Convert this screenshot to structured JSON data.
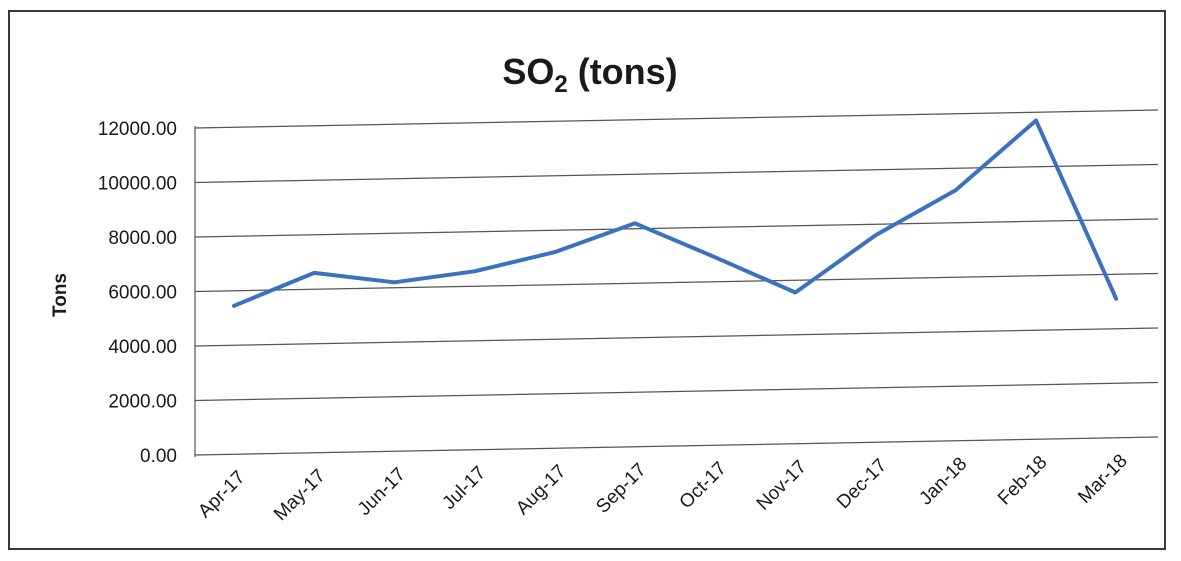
{
  "chart_data": {
    "type": "line",
    "title_main": "SO",
    "title_subscript": "2",
    "title_rest": " (tons)",
    "xlabel": "",
    "ylabel": "Tons",
    "categories": [
      "Apr-17",
      "May-17",
      "Jun-17",
      "Jul-17",
      "Aug-17",
      "Sep-17",
      "Oct-17",
      "Nov-17",
      "Dec-17",
      "Jan-18",
      "Feb-18",
      "Mar-18"
    ],
    "series": [
      {
        "values": [
          5450,
          6600,
          6200,
          6550,
          7200,
          8200,
          6900,
          5550,
          7600,
          9200,
          11700,
          5100
        ],
        "color": "#3a72c0"
      }
    ],
    "ylim": [
      0,
      12000
    ],
    "yticks": [
      0,
      2000,
      4000,
      6000,
      8000,
      10000,
      12000
    ],
    "ytick_labels": [
      "0.00",
      "2000.00",
      "4000.00",
      "6000.00",
      "8000.00",
      "10000.00",
      "12000.00"
    ],
    "grid": true,
    "legend": "none"
  }
}
